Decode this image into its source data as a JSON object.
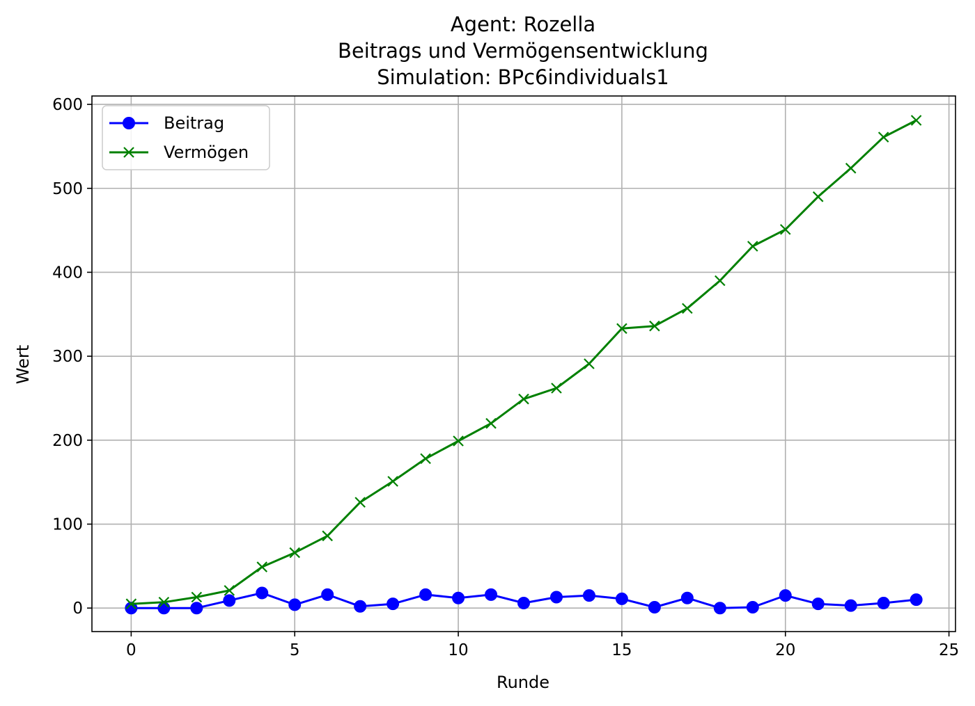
{
  "chart_data": {
    "type": "line",
    "title_lines": [
      "Agent: Rozella",
      "Beitrags und Vermögensentwicklung",
      "Simulation: BPc6individuals1"
    ],
    "xlabel": "Runde",
    "ylabel": "Wert",
    "xlim": [
      -1.2,
      25.2
    ],
    "ylim": [
      -28,
      610
    ],
    "xticks": [
      0,
      5,
      10,
      15,
      20,
      25
    ],
    "yticks": [
      0,
      100,
      200,
      300,
      400,
      500,
      600
    ],
    "grid": true,
    "legend_position": "upper-left",
    "x": [
      0,
      1,
      2,
      3,
      4,
      5,
      6,
      7,
      8,
      9,
      10,
      11,
      12,
      13,
      14,
      15,
      16,
      17,
      18,
      19,
      20,
      21,
      22,
      23,
      24
    ],
    "series": [
      {
        "name": "Beitrag",
        "color": "#0000ff",
        "marker": "circle",
        "values": [
          0,
          0,
          0,
          9,
          18,
          4,
          16,
          2,
          5,
          16,
          12,
          16,
          6,
          13,
          15,
          11,
          1,
          12,
          0,
          1,
          15,
          5,
          3,
          6,
          10
        ]
      },
      {
        "name": "Vermögen",
        "color": "#008000",
        "marker": "x",
        "values": [
          5,
          7,
          13,
          21,
          49,
          66,
          86,
          126,
          151,
          178,
          199,
          220,
          249,
          262,
          291,
          333,
          336,
          357,
          390,
          431,
          451,
          490,
          524,
          561,
          581
        ]
      }
    ]
  }
}
